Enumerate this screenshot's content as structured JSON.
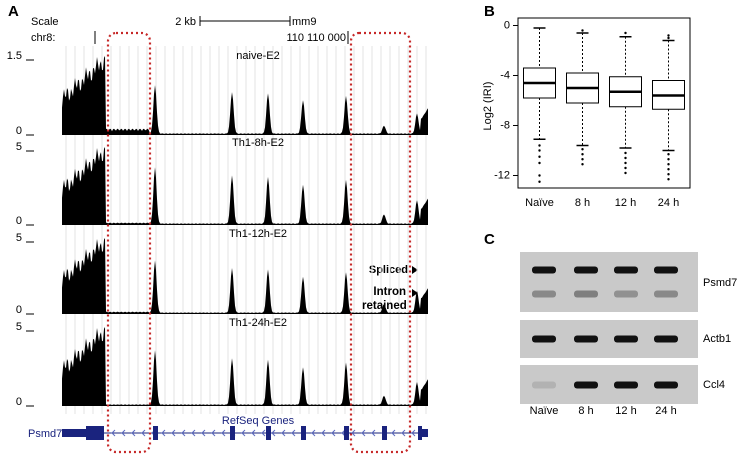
{
  "panel_labels": [
    "A",
    "B",
    "C"
  ],
  "browser": {
    "scale": "Scale",
    "scale_bar": "2 kb",
    "assembly": "mm9",
    "chrom": "chr8:",
    "coordinate": "110 110 000",
    "tracks": [
      {
        "name": "naive-E2",
        "yticks": [
          0,
          1.5
        ]
      },
      {
        "name": "Th1-8h-E2",
        "yticks": [
          0,
          5
        ]
      },
      {
        "name": "Th1-12h-E2",
        "yticks": [
          0,
          5
        ]
      },
      {
        "name": "Th1-24h-E2",
        "yticks": [
          0,
          5
        ]
      }
    ],
    "gene_track": "RefSeq Genes",
    "gene": "Psmd7"
  },
  "chart_data": {
    "type": "box",
    "ylabel": "Log2 (IRI)",
    "categories": [
      "Naïve",
      "8 h",
      "12 h",
      "24 h"
    ],
    "q3": [
      -3.4,
      -3.8,
      -4.1,
      -4.4
    ],
    "medians": [
      -4.6,
      -5.0,
      -5.3,
      -5.6
    ],
    "q1": [
      -5.8,
      -6.2,
      -6.5,
      -6.7
    ],
    "whisker_high": [
      -0.2,
      -0.6,
      -0.9,
      -1.2
    ],
    "whisker_low": [
      -9.1,
      -9.6,
      -9.8,
      -10.0
    ],
    "outliers": [
      [
        -9.6,
        -10.0,
        -10.5,
        -11.0,
        -12.0,
        -12.5
      ],
      [
        -0.4,
        -9.9,
        -10.3,
        -10.7,
        -11.1
      ],
      [
        -0.6,
        -10.2,
        -10.6,
        -11.0,
        -11.4,
        -11.8
      ],
      [
        -0.8,
        -1.0,
        -10.3,
        -10.7,
        -11.1,
        -11.5,
        -11.9,
        -12.3
      ]
    ],
    "color": "#000000",
    "ylim": [
      -13,
      0.6
    ],
    "yticks": [
      0,
      -4,
      -8,
      -12
    ]
  },
  "gel": {
    "markers": [
      "Spliced",
      "Intron retained"
    ],
    "genes": [
      "Psmd7",
      "Actb1",
      "Ccl4"
    ],
    "lanes": [
      "Naïve",
      "8 h",
      "12 h",
      "24 h"
    ]
  }
}
